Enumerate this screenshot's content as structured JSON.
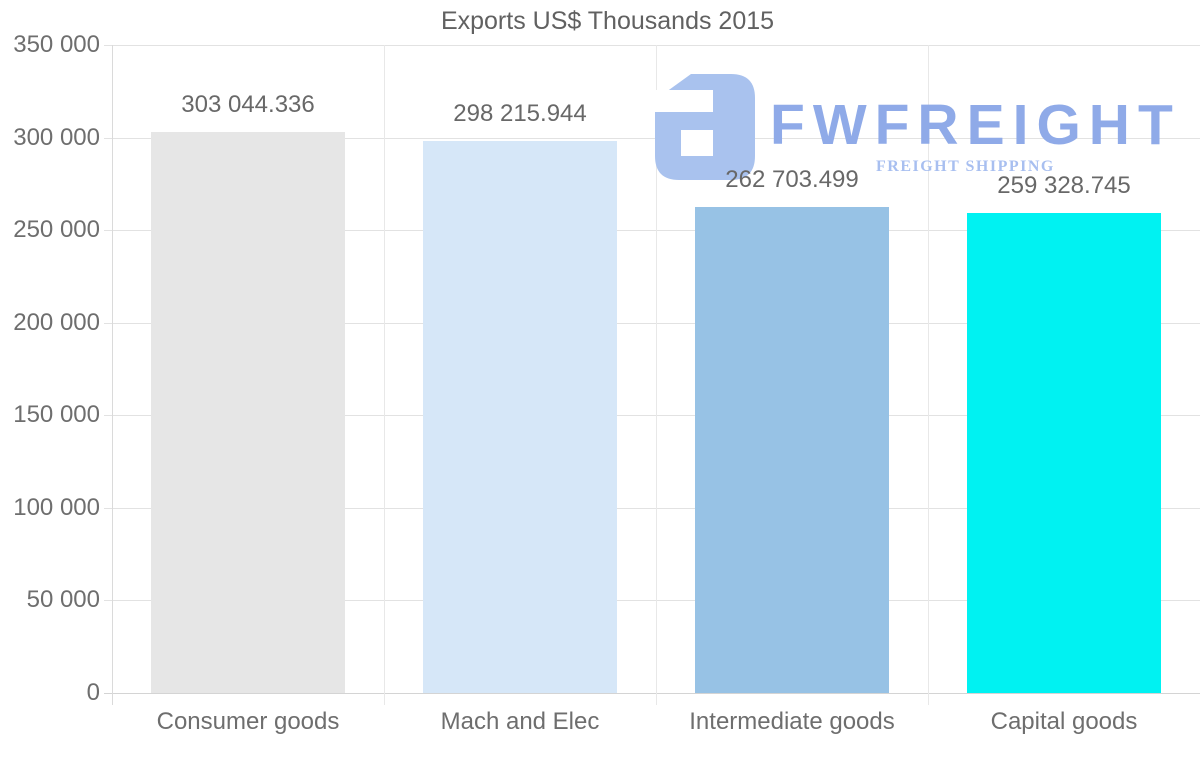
{
  "title": "Exports US$ Thousands 2015",
  "logo": {
    "wordmark": "FWFREIGHT",
    "tagline": "FREIGHT SHIPPING",
    "icon": "fwfreight-monogram-icon",
    "colors": {
      "icon": "#a9c2ee",
      "wordmark": "#8faae8",
      "tagline": "#a8bff0"
    }
  },
  "chart_data": {
    "type": "bar",
    "title": "Exports US$ Thousands 2015",
    "categories": [
      "Consumer goods",
      "Mach and Elec",
      "Intermediate goods",
      "Capital goods"
    ],
    "values": [
      303044.336,
      298215.944,
      262703.499,
      259328.745
    ],
    "value_labels": [
      "303 044.336",
      "298 215.944",
      "262 703.499",
      "259 328.745"
    ],
    "bar_colors": [
      "#e6e6e6",
      "#d6e7f8",
      "#97c2e5",
      "#00f2f2"
    ],
    "xlabel": "",
    "ylabel": "",
    "ylim": [
      0,
      350000
    ],
    "ytick_step": 50000,
    "ytick_labels": [
      "0",
      "50 000",
      "100 000",
      "150 000",
      "200 000",
      "250 000",
      "300 000",
      "350 000"
    ],
    "grid": true,
    "legend": "none",
    "text_color": "#6e6e6e",
    "grid_color": "#e2e2e2"
  }
}
